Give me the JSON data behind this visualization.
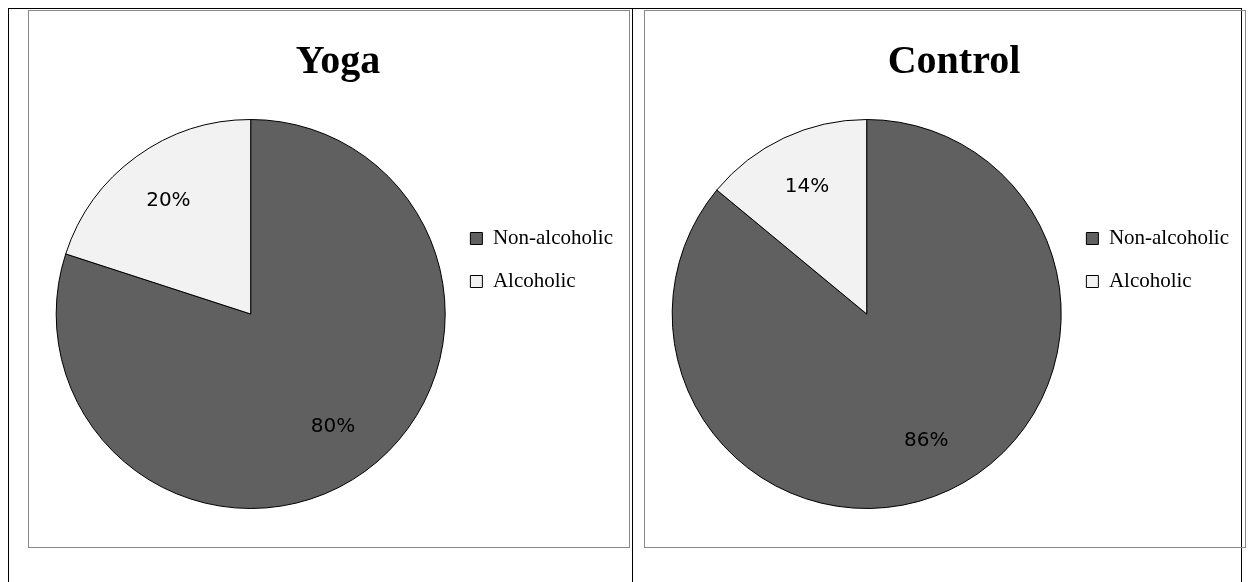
{
  "chart_data": [
    {
      "type": "pie",
      "title": "Yoga",
      "categories": [
        "Non-alcoholic",
        "Alcoholic"
      ],
      "values": [
        80,
        20
      ],
      "value_labels": [
        "80%",
        "20%"
      ],
      "colors": [
        "#606060",
        "#f2f2f2"
      ],
      "legend": "right"
    },
    {
      "type": "pie",
      "title": "Control",
      "categories": [
        "Non-alcoholic",
        "Alcoholic"
      ],
      "values": [
        86,
        14
      ],
      "value_labels": [
        "86%",
        "14%"
      ],
      "colors": [
        "#606060",
        "#f2f2f2"
      ],
      "legend": "right"
    }
  ]
}
